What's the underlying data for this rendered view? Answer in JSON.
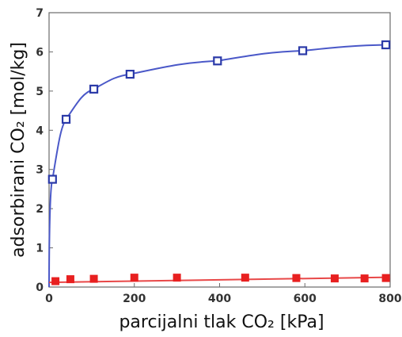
{
  "chart_data": {
    "type": "scatter",
    "xlabel": "parcijalni tlak CO₂ [kPa]",
    "ylabel": "adsorbirani CO₂ [mol/kg]",
    "xlim": [
      0,
      800
    ],
    "ylim": [
      0,
      7
    ],
    "x_ticks": [
      "0",
      "200",
      "400",
      "600",
      "800"
    ],
    "y_ticks": [
      "0",
      "1",
      "2",
      "3",
      "4",
      "5",
      "6",
      "7"
    ],
    "grid": false,
    "series": [
      {
        "marker": "open-square",
        "color": "#2b3aa8",
        "line_color": "#4a58c8",
        "points": [
          {
            "x": 8,
            "y": 2.75
          },
          {
            "x": 40,
            "y": 4.28
          },
          {
            "x": 105,
            "y": 5.05
          },
          {
            "x": 190,
            "y": 5.43
          },
          {
            "x": 395,
            "y": 5.77
          },
          {
            "x": 595,
            "y": 6.03
          },
          {
            "x": 790,
            "y": 6.18
          }
        ]
      },
      {
        "marker": "filled-square",
        "color": "#e82020",
        "line_color": "#e84848",
        "points": [
          {
            "x": 15,
            "y": 0.15
          },
          {
            "x": 50,
            "y": 0.2
          },
          {
            "x": 105,
            "y": 0.21
          },
          {
            "x": 200,
            "y": 0.24
          },
          {
            "x": 300,
            "y": 0.24
          },
          {
            "x": 460,
            "y": 0.24
          },
          {
            "x": 580,
            "y": 0.23
          },
          {
            "x": 670,
            "y": 0.22
          },
          {
            "x": 740,
            "y": 0.22
          },
          {
            "x": 790,
            "y": 0.23
          }
        ]
      }
    ]
  }
}
